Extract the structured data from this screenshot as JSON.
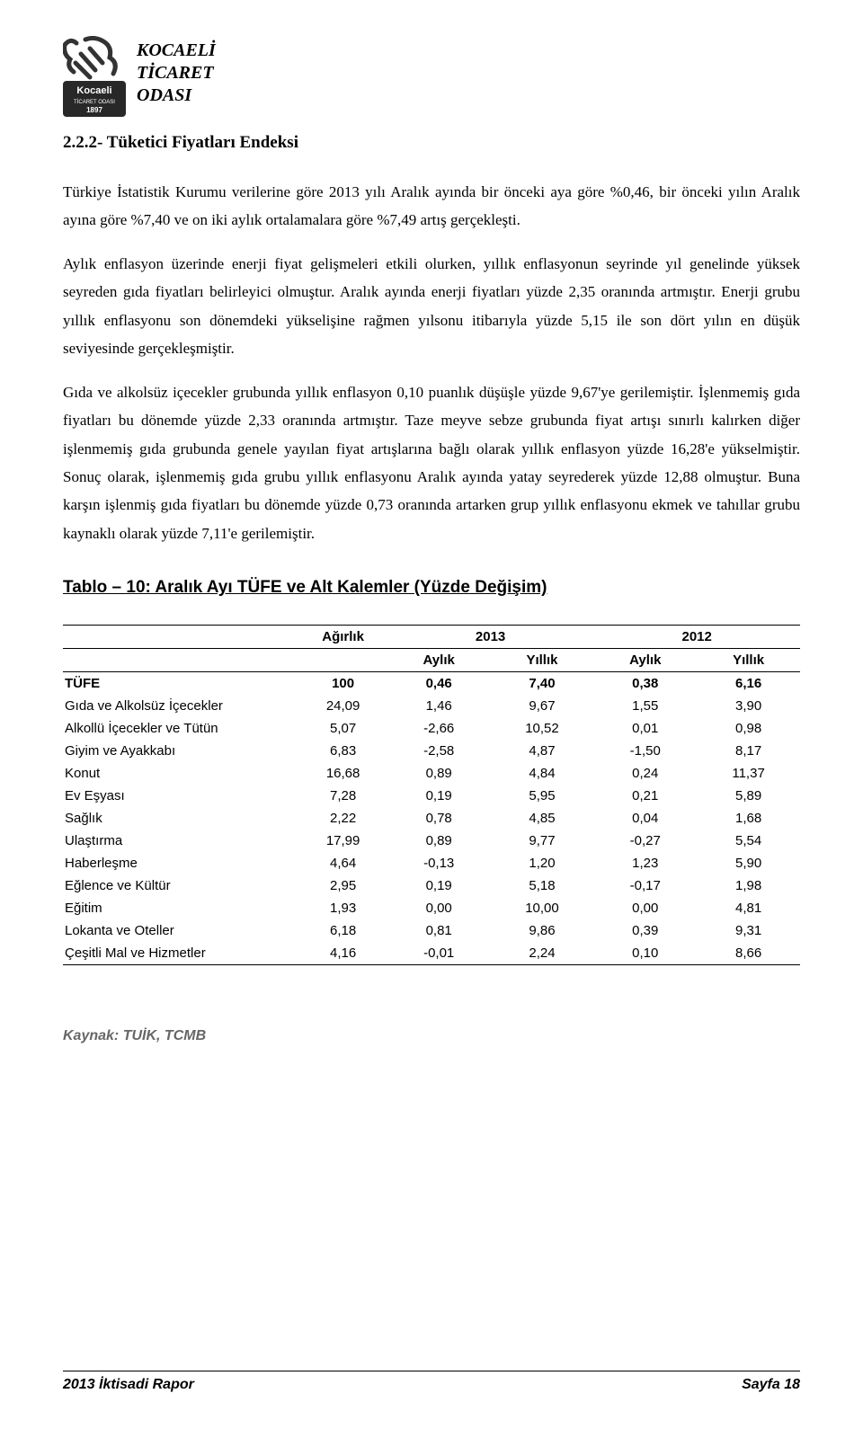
{
  "org": {
    "l1": "KOCAELİ",
    "l2": "TİCARET",
    "l3": "ODASI"
  },
  "logo": {
    "name": "Kocaeli",
    "sub": "TİCARET ODASI",
    "year": "1897",
    "stroke": "#333333",
    "tile": "#282828",
    "text": "#ffffff"
  },
  "section_title": "2.2.2- Tüketici Fiyatları Endeksi",
  "para1": "Türkiye İstatistik Kurumu verilerine göre 2013 yılı Aralık ayında bir önceki aya göre %0,46, bir önceki yılın Aralık ayına göre %7,40 ve on iki aylık ortalamalara göre %7,49 artış gerçekleşti.",
  "para2": "Aylık enflasyon üzerinde enerji fiyat gelişmeleri etkili olurken, yıllık enflasyonun seyrinde yıl genelinde yüksek seyreden gıda fiyatları belirleyici olmuştur. Aralık ayında enerji fiyatları yüzde 2,35 oranında artmıştır. Enerji grubu yıllık enflasyonu son dönemdeki yükselişine rağmen yılsonu itibarıyla yüzde 5,15 ile son dört yılın en düşük seviyesinde gerçekleşmiştir.",
  "para3": "Gıda ve alkolsüz içecekler grubunda yıllık enflasyon 0,10 puanlık düşüşle yüzde 9,67'ye gerilemiştir. İşlenmemiş gıda fiyatları bu dönemde yüzde 2,33 oranında artmıştır. Taze meyve sebze grubunda fiyat artışı sınırlı kalırken diğer işlenmemiş gıda grubunda genele yayılan fiyat artışlarına bağlı olarak yıllık enflasyon yüzde 16,28'e yükselmiştir. Sonuç olarak, işlenmemiş gıda grubu yıllık enflasyonu Aralık ayında yatay seyrederek yüzde 12,88 olmuştur. Buna karşın işlenmiş gıda fiyatları bu dönemde yüzde 0,73 oranında artarken grup yıllık enflasyonu ekmek ve tahıllar grubu kaynaklı olarak yüzde 7,11'e gerilemiştir.",
  "table_title": "Tablo – 10: Aralık Ayı TÜFE ve Alt Kalemler (Yüzde Değişim)",
  "table": {
    "head": {
      "weight": "Ağırlık",
      "y2013": "2013",
      "y2012": "2012",
      "monthly": "Aylık",
      "yearly": "Yıllık"
    },
    "col_widths": [
      "32%",
      "12%",
      "14%",
      "14%",
      "14%",
      "14%"
    ],
    "rows": [
      {
        "label": "TÜFE",
        "w": "100",
        "m13": "0,46",
        "y13": "7,40",
        "m12": "0,38",
        "y12": "6,16",
        "bold": true
      },
      {
        "label": "Gıda ve Alkolsüz İçecekler",
        "w": "24,09",
        "m13": "1,46",
        "y13": "9,67",
        "m12": "1,55",
        "y12": "3,90"
      },
      {
        "label": "Alkollü İçecekler ve Tütün",
        "w": "5,07",
        "m13": "-2,66",
        "y13": "10,52",
        "m12": "0,01",
        "y12": "0,98"
      },
      {
        "label": "Giyim ve Ayakkabı",
        "w": "6,83",
        "m13": "-2,58",
        "y13": "4,87",
        "m12": "-1,50",
        "y12": "8,17"
      },
      {
        "label": "Konut",
        "w": "16,68",
        "m13": "0,89",
        "y13": "4,84",
        "m12": "0,24",
        "y12": "11,37"
      },
      {
        "label": "Ev Eşyası",
        "w": "7,28",
        "m13": "0,19",
        "y13": "5,95",
        "m12": "0,21",
        "y12": "5,89"
      },
      {
        "label": "Sağlık",
        "w": "2,22",
        "m13": "0,78",
        "y13": "4,85",
        "m12": "0,04",
        "y12": "1,68"
      },
      {
        "label": "Ulaştırma",
        "w": "17,99",
        "m13": "0,89",
        "y13": "9,77",
        "m12": "-0,27",
        "y12": "5,54"
      },
      {
        "label": "Haberleşme",
        "w": "4,64",
        "m13": "-0,13",
        "y13": "1,20",
        "m12": "1,23",
        "y12": "5,90"
      },
      {
        "label": "Eğlence ve Kültür",
        "w": "2,95",
        "m13": "0,19",
        "y13": "5,18",
        "m12": "-0,17",
        "y12": "1,98"
      },
      {
        "label": "Eğitim",
        "w": "1,93",
        "m13": "0,00",
        "y13": "10,00",
        "m12": "0,00",
        "y12": "4,81"
      },
      {
        "label": "Lokanta ve Oteller",
        "w": "6,18",
        "m13": "0,81",
        "y13": "9,86",
        "m12": "0,39",
        "y12": "9,31"
      },
      {
        "label": "Çeşitli Mal ve Hizmetler",
        "w": "4,16",
        "m13": "-0,01",
        "y13": "2,24",
        "m12": "0,10",
        "y12": "8,66"
      }
    ]
  },
  "source": "Kaynak: TUİK, TCMB",
  "footer": {
    "left": "2013 İktisadi Rapor",
    "right": "Sayfa 18"
  }
}
